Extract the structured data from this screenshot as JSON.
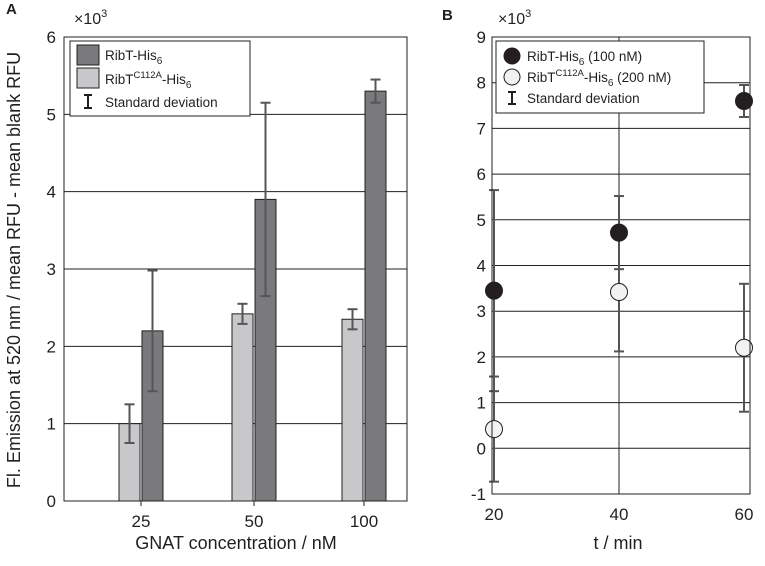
{
  "chart_data": [
    {
      "panel": "A",
      "type": "bar",
      "exponent_label": "×10",
      "exponent_sup": "3",
      "xlabel": "GNAT concentration / nM",
      "ylabel": "Fl. Emission at 520 nm / mean RFU - mean blank RFU",
      "ylim": [
        0,
        6
      ],
      "yticks": [
        "0",
        "1",
        "2",
        "3",
        "4",
        "5",
        "6"
      ],
      "categories": [
        "25",
        "50",
        "100"
      ],
      "grid": "horizontal",
      "legend_position": "top-left",
      "series": [
        {
          "name": "RibT-His",
          "sub": "6",
          "sup": "",
          "suffix": "",
          "color": "#7a7a7c",
          "values": [
            2.2,
            3.9,
            5.3
          ],
          "errors": [
            0.78,
            1.25,
            0.15
          ]
        },
        {
          "name": "RibT",
          "sub": "",
          "sup": "C112A",
          "suffix": "-His",
          "suffix_sub": "6",
          "color": "#c8c8ca",
          "values": [
            1.0,
            2.42,
            2.35
          ],
          "errors": [
            0.25,
            0.13,
            0.13
          ]
        }
      ],
      "legend_std": "Standard deviation"
    },
    {
      "panel": "B",
      "type": "scatter",
      "exponent_label": "×10",
      "exponent_sup": "3",
      "xlabel": "t / min",
      "ylabel": "",
      "xlim": [
        20,
        60
      ],
      "ylim": [
        -1,
        9
      ],
      "xticks": [
        "20",
        "40",
        "60"
      ],
      "yticks": [
        "-1",
        "0",
        "1",
        "2",
        "3",
        "4",
        "5",
        "6",
        "7",
        "8",
        "9"
      ],
      "grid": "both",
      "legend_position": "top-left",
      "series": [
        {
          "name": "RibT-His",
          "sub": "6",
          "sup": "",
          "suffix": " (100 nM)",
          "color": "#231f20",
          "x": [
            20,
            40,
            60
          ],
          "values": [
            3.45,
            4.72,
            7.6
          ],
          "errors": [
            2.2,
            0.8,
            0.35
          ]
        },
        {
          "name": "RibT",
          "sub": "",
          "sup": "C112A",
          "suffix": "-His",
          "suffix_sub": "6",
          "suffix2": " (200 nM)",
          "color": "#f2f2f2",
          "x": [
            20,
            40,
            60
          ],
          "values": [
            0.42,
            3.42,
            2.2
          ],
          "errors": [
            1.15,
            1.3,
            1.4
          ]
        }
      ],
      "legend_std": "Standard deviation"
    }
  ]
}
